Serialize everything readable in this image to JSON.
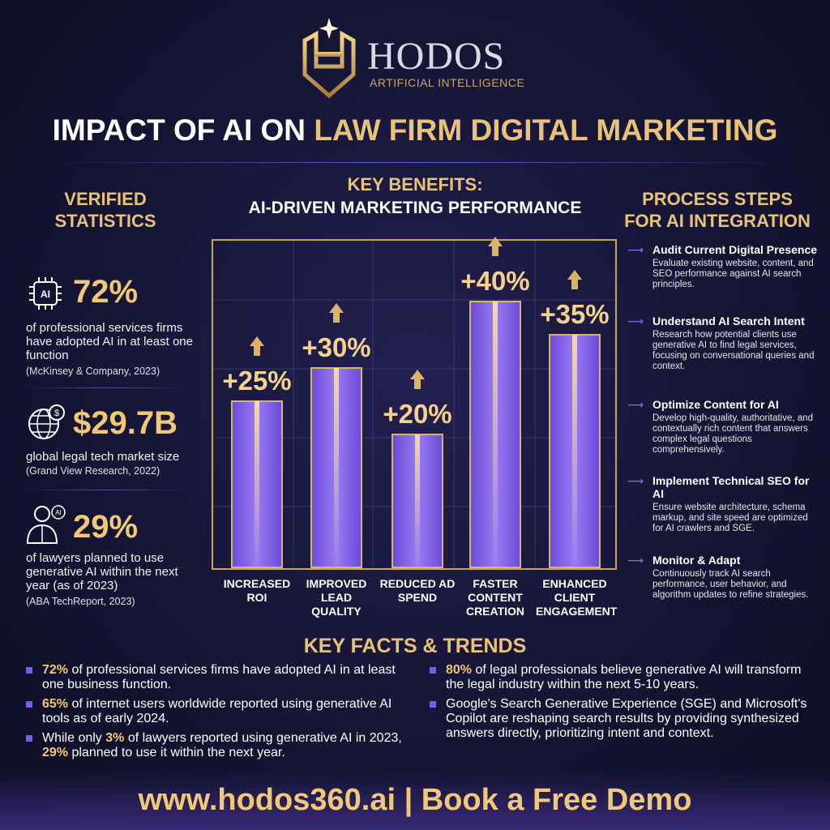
{
  "logo": {
    "name": "HODOS",
    "tagline": "ARTIFICIAL INTELLIGENCE"
  },
  "title": [
    "IMPACT OF AI ON",
    "LAW FIRM DIGITAL MARKETING"
  ],
  "statistics": {
    "heading": "VERIFIED STATISTICS",
    "items": [
      {
        "value": "72%",
        "text": "of professional services firms have adopted AI in at least one function",
        "source": "(McKinsey & Company, 2023)"
      },
      {
        "value": "$29.7B",
        "text": "global legal tech market size",
        "source": "(Grand View Research, 2022)"
      },
      {
        "value": "29%",
        "text": "of lawyers planned to use generative AI within the next year (as of 2023)",
        "source": "(ABA TechReport, 2023)"
      }
    ]
  },
  "chart_data": {
    "type": "bar",
    "title": "KEY BENEFITS:",
    "subtitle": "AI-DRIVEN MARKETING PERFORMANCE",
    "categories": [
      "INCREASED ROI",
      "IMPROVED LEAD QUALITY",
      "REDUCED AD SPEND",
      "FASTER CONTENT CREATION",
      "ENHANCED CLIENT ENGAGEMENT"
    ],
    "values": [
      25,
      30,
      20,
      40,
      35
    ],
    "value_labels": [
      "+25%",
      "+30%",
      "+20%",
      "+40%",
      "+35%"
    ],
    "color": "#7a5ae6"
  },
  "process": {
    "heading": "PROCESS STEPS FOR AI INTEGRATION",
    "steps": [
      {
        "title": "Audit Current Digital Presence",
        "text": "Evaluate existing website, content, and SEO performance against AI search principles."
      },
      {
        "title": "Understand AI Search Intent",
        "text": "Research how potential clients use generative AI to find legal services, focusing on conversational queries and context."
      },
      {
        "title": "Optimize Content for AI",
        "text": "Develop high-quality, authoritative, and contextually rich content that answers complex legal questions comprehensively."
      },
      {
        "title": "Implement Technical SEO for AI",
        "text": "Ensure website architecture, schema markup, and site speed are optimized for AI crawlers and SGE."
      },
      {
        "title": "Monitor & Adapt",
        "text": "Continuously track AI search performance, user behavior, and algorithm updates to refine strategies."
      }
    ]
  },
  "key_facts": {
    "title": "KEY FACTS & TRENDS",
    "columns": [
      [
        {
          "parts": [
            {
              "text": "72%",
              "highlight": true
            },
            {
              "text": " of professional services firms have adopted AI in at least one business function."
            }
          ]
        },
        {
          "parts": [
            {
              "text": "65%",
              "highlight": true
            },
            {
              "text": " of internet users worldwide reported using generative AI tools as of early 2024."
            }
          ]
        },
        {
          "parts": [
            {
              "text": "While only "
            },
            {
              "text": "3%",
              "highlight": true
            },
            {
              "text": " of lawyers reported using generative AI in 2023, "
            },
            {
              "text": "29%",
              "highlight": true
            },
            {
              "text": " planned to use it within the next year."
            }
          ]
        }
      ],
      [
        {
          "parts": [
            {
              "text": "80%",
              "highlight": true
            },
            {
              "text": " of legal professionals believe generative AI will transform the legal industry within the next 5-10 years."
            }
          ]
        },
        {
          "parts": [
            {
              "text": "Google's Search Generative Experience (SGE) and Microsoft's Copilot are reshaping search results by providing synthesized answers directly, prioritizing intent and context."
            }
          ]
        }
      ]
    ]
  },
  "footer": "www.hodos360.ai | Book a Free Demo"
}
